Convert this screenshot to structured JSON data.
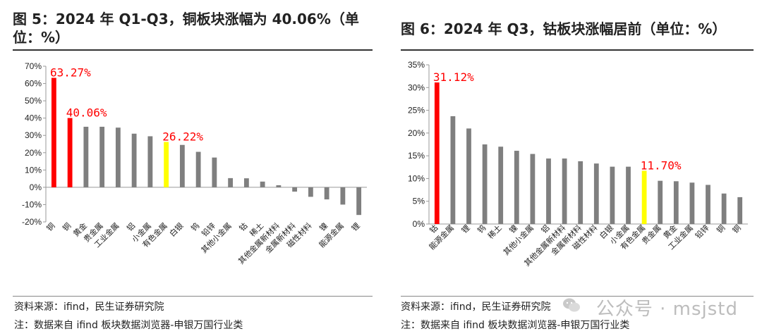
{
  "left": {
    "title": "图 5：2024 年 Q1-Q3，铜板块涨幅为 40.06%（单位：%）",
    "source": "资料来源：ifind，民生证券研究院",
    "note": "注：数据来自 ifind 板块数据浏览器-申银万国行业类"
  },
  "right": {
    "title": "图 6：2024 年 Q3，钴板块涨幅居前（单位：%）",
    "source": "资料来源：ifind，民生证券研究院",
    "note": "注：数据来自 ifind  板块数据浏览器-申银万国行业类"
  },
  "watermark": "公众号 · msjstd",
  "colors": {
    "normal": "#7f7f7f",
    "highlight_red": "#ff0000",
    "highlight_yellow": "#ffff00",
    "label": "#ff0000"
  },
  "chart_data": [
    {
      "type": "bar",
      "categories": [
        "铜",
        "铜",
        "黄金",
        "贵金属",
        "工业金属",
        "铝",
        "小金属",
        "有色金属",
        "白银",
        "钨",
        "铅锌",
        "其他小金属",
        "钴",
        "稀土",
        "其他金属新材料",
        "金属新材料",
        "磁性材料",
        "镍",
        "能源金属",
        "锂"
      ],
      "values": [
        63.27,
        40.06,
        35,
        35,
        34.5,
        31,
        29.5,
        26.22,
        24.5,
        20.5,
        17.2,
        5.3,
        5.2,
        3.3,
        1.2,
        -2.5,
        -5.5,
        -7.0,
        -10.0,
        -16.0
      ],
      "highlight": [
        "red",
        "red",
        "",
        "",
        "",
        "",
        "",
        "yellow",
        "",
        "",
        "",
        "",
        "",
        "",
        "",
        "",
        "",
        "",
        "",
        ""
      ],
      "data_labels": [
        {
          "index": 0,
          "text": "63.27%"
        },
        {
          "index": 1,
          "text": "40.06%"
        },
        {
          "index": 7,
          "text": "26.22%"
        }
      ],
      "ylim": [
        -20,
        70
      ],
      "yticks": [
        -20,
        -10,
        0,
        10,
        20,
        30,
        40,
        50,
        60,
        70
      ],
      "tick_suffix": "%",
      "grid": false
    },
    {
      "type": "bar",
      "categories": [
        "钴",
        "能源金属",
        "锂",
        "钨",
        "稀土",
        "镍",
        "其他小金属",
        "铝",
        "其他金属新材料",
        "金属新材料",
        "磁性材料",
        "白银",
        "小金属",
        "有色金属",
        "贵金属",
        "黄金",
        "工业金属",
        "铅锌",
        "铜",
        "铜"
      ],
      "values": [
        31.12,
        23.7,
        21,
        17.5,
        17,
        16.1,
        15.4,
        14.4,
        14.4,
        13.8,
        13.3,
        12.6,
        12.6,
        11.7,
        9.5,
        9.4,
        9.1,
        8.6,
        6.7,
        5.9
      ],
      "highlight": [
        "red",
        "",
        "",
        "",
        "",
        "",
        "",
        "",
        "",
        "",
        "",
        "",
        "",
        "yellow",
        "",
        "",
        "",
        "",
        "",
        ""
      ],
      "data_labels": [
        {
          "index": 0,
          "text": "31.12%"
        },
        {
          "index": 13,
          "text": "11.70%"
        }
      ],
      "ylim": [
        0,
        35
      ],
      "yticks": [
        0,
        5,
        10,
        15,
        20,
        25,
        30,
        35
      ],
      "tick_suffix": "%",
      "grid": false
    }
  ]
}
